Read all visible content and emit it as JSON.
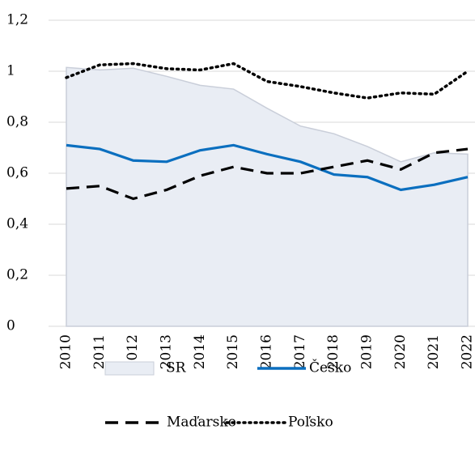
{
  "chart_data": {
    "type": "line",
    "categories": [
      "2010",
      "2011",
      "2012",
      "2013",
      "2014",
      "2015",
      "2016",
      "2017",
      "2018",
      "2019",
      "2020",
      "2021",
      "2022"
    ],
    "series": [
      {
        "name": "SR",
        "kind": "area",
        "color": "#e9edf4",
        "edge": "#c9ced9",
        "linestyle": "solid",
        "values": [
          1.015,
          1.005,
          1.012,
          0.98,
          0.945,
          0.93,
          0.855,
          0.785,
          0.755,
          0.705,
          0.645,
          0.68,
          0.675
        ]
      },
      {
        "name": "Česko",
        "kind": "line",
        "color": "#0b6fbf",
        "linestyle": "solid",
        "values": [
          0.71,
          0.695,
          0.65,
          0.645,
          0.69,
          0.71,
          0.675,
          0.645,
          0.595,
          0.585,
          0.535,
          0.555,
          0.585
        ]
      },
      {
        "name": "Maďarsko",
        "kind": "line",
        "color": "#000000",
        "linestyle": "dashed",
        "values": [
          0.54,
          0.55,
          0.5,
          0.535,
          0.59,
          0.625,
          0.6,
          0.6,
          0.625,
          0.65,
          0.615,
          0.68,
          0.695
        ]
      },
      {
        "name": "Poľsko",
        "kind": "line",
        "color": "#000000",
        "linestyle": "dotted",
        "values": [
          0.975,
          1.025,
          1.03,
          1.01,
          1.005,
          1.03,
          0.96,
          0.94,
          0.915,
          0.895,
          0.915,
          0.91,
          1.0
        ]
      }
    ],
    "ylim": [
      0,
      1.2
    ],
    "yticks": [
      0,
      {
        "value": 0.2,
        "label": "0,2"
      },
      {
        "value": 0.4,
        "label": "0,4"
      },
      {
        "value": 0.6,
        "label": "0,6"
      },
      {
        "value": 0.8,
        "label": "0,8"
      },
      1,
      {
        "value": 1.2,
        "label": "1,2"
      }
    ],
    "grid": true,
    "legend": "bottom"
  }
}
